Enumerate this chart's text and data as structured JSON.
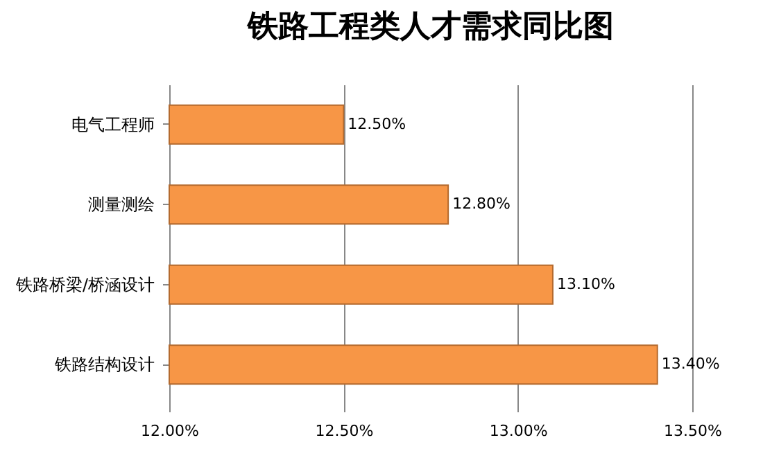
{
  "chart_data": {
    "type": "bar",
    "orientation": "horizontal",
    "title": "铁路工程类人才需求同比图",
    "categories": [
      "电气工程师",
      "测量测绘",
      "铁路桥梁/桥涵设计",
      "铁路结构设计"
    ],
    "values": [
      12.5,
      12.8,
      13.1,
      13.4
    ],
    "color": "#f79646",
    "value_labels": [
      "12.50%",
      "12.80%",
      "13.10%",
      "13.40%"
    ],
    "xlim": [
      12,
      13.5
    ],
    "xticks": [
      {
        "value": 12,
        "label": "12.00%"
      },
      {
        "value": 12.5,
        "label": "12.50%"
      },
      {
        "value": 13,
        "label": "13.00%"
      },
      {
        "value": 13.5,
        "label": "13.50%"
      }
    ],
    "grid": "x"
  }
}
